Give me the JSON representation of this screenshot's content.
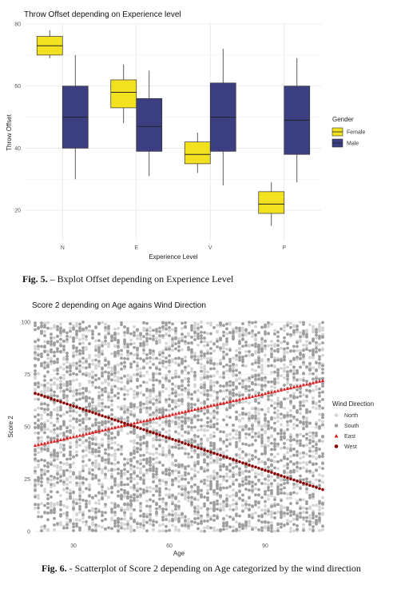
{
  "figure5": {
    "caption_label": "Fig. 5.",
    "caption_text": " – Bxplot Offset depending on Experience Level"
  },
  "figure6": {
    "caption_label": "Fig. 6.",
    "caption_text": " - Scatterplot of Score 2 depending on Age categorized by the wind direction"
  },
  "chart_data": [
    {
      "type": "box",
      "title": "Throw Offset depending on Experience level",
      "xlabel": "Experience Level",
      "ylabel": "Throw Offset",
      "categories": [
        "N",
        "E",
        "V",
        "P"
      ],
      "ylim": [
        10,
        80
      ],
      "yticks": [
        20,
        40,
        60,
        80
      ],
      "grid": true,
      "legend": {
        "title": "Gender",
        "position": "right"
      },
      "series": [
        {
          "name": "Female",
          "color": "#f2e11e",
          "boxes": [
            {
              "min": 69,
              "q1": 70,
              "median": 73,
              "q3": 76,
              "max": 78
            },
            {
              "min": 48,
              "q1": 53,
              "median": 58,
              "q3": 62,
              "max": 67
            },
            {
              "min": 32,
              "q1": 35,
              "median": 38,
              "q3": 42,
              "max": 45
            },
            {
              "min": 15,
              "q1": 19,
              "median": 22,
              "q3": 26,
              "max": 29
            }
          ]
        },
        {
          "name": "Male",
          "color": "#3b3f82",
          "boxes": [
            {
              "min": 30,
              "q1": 40,
              "median": 50,
              "q3": 60,
              "max": 70
            },
            {
              "min": 31,
              "q1": 39,
              "median": 47,
              "q3": 56,
              "max": 65
            },
            {
              "min": 28,
              "q1": 39,
              "median": 50,
              "q3": 61,
              "max": 72
            },
            {
              "min": 29,
              "q1": 38,
              "median": 49,
              "q3": 60,
              "max": 69
            }
          ]
        }
      ]
    },
    {
      "type": "scatter",
      "title": "Score 2 depending on Age agains Wind Direction",
      "xlabel": "Age",
      "ylabel": "Score 2",
      "xlim": [
        18,
        108
      ],
      "ylim": [
        0,
        100
      ],
      "xticks": [
        30,
        60,
        90
      ],
      "yticks": [
        0,
        25,
        50,
        75,
        100
      ],
      "grid": true,
      "legend": {
        "title": "Wind Direction",
        "position": "right"
      },
      "series": [
        {
          "name": "North",
          "color": "#d4d4d4",
          "marker": "circle",
          "pattern": "uniform-noise",
          "x_range": [
            18,
            108
          ],
          "y_range": [
            0,
            100
          ],
          "step": 1
        },
        {
          "name": "South",
          "color": "#9e9e9e",
          "marker": "circle",
          "pattern": "uniform-noise",
          "x_range": [
            18,
            108
          ],
          "y_range": [
            0,
            100
          ],
          "step": 1
        },
        {
          "name": "East",
          "color": "#e31a1c",
          "marker": "triangle",
          "pattern": "linear",
          "x_range": [
            18,
            108
          ],
          "y_at_start": 41,
          "y_at_end": 72,
          "step": 1
        },
        {
          "name": "West",
          "color": "#8b0000",
          "marker": "circle",
          "pattern": "linear",
          "x_range": [
            18,
            108
          ],
          "y_at_start": 66,
          "y_at_end": 20,
          "step": 1
        }
      ]
    }
  ]
}
